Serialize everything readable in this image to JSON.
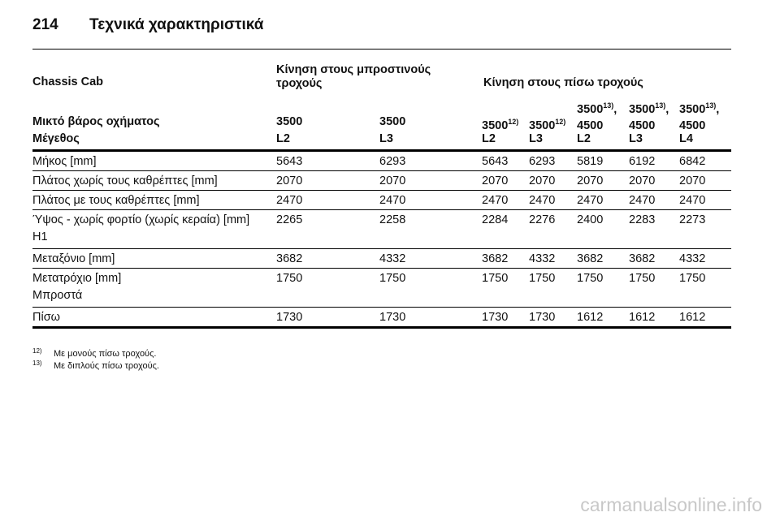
{
  "header": {
    "page_number": "214",
    "title": "Τεχνικά χαρακτηριστικά"
  },
  "table": {
    "group_header": {
      "label": "Chassis Cab",
      "front_drive": "Κίνηση στους μπροστινούς τροχούς",
      "rear_drive": "Κίνηση στους πίσω τροχούς"
    },
    "weight_row": {
      "label": "Μικτό βάρος οχήματος",
      "values": [
        "3500",
        "3500",
        "3500",
        "3500",
        "4500",
        "4500",
        "4500"
      ],
      "superscripts": [
        "",
        "",
        "12)",
        "12)",
        "",
        "",
        ""
      ],
      "upper_values": [
        "",
        "",
        "",
        "",
        "3500",
        "3500",
        "3500"
      ],
      "upper_superscripts": [
        "",
        "",
        "",
        "",
        "13)",
        "13)",
        "13)"
      ],
      "upper_suffix": [
        "",
        "",
        "",
        "",
        ",",
        ",",
        ","
      ]
    },
    "size_row": {
      "label": "Μέγεθος",
      "values": [
        "L2",
        "L3",
        "L2",
        "L3",
        "L2",
        "L3",
        "L4"
      ]
    },
    "rows": [
      {
        "label": "Μήκος [mm]",
        "label2": "",
        "values": [
          "5643",
          "6293",
          "5643",
          "6293",
          "5819",
          "6192",
          "6842"
        ]
      },
      {
        "label": "Πλάτος χωρίς τους καθρέπτες [mm]",
        "label2": "",
        "values": [
          "2070",
          "2070",
          "2070",
          "2070",
          "2070",
          "2070",
          "2070"
        ]
      },
      {
        "label": "Πλάτος με τους καθρέπτες [mm]",
        "label2": "",
        "values": [
          "2470",
          "2470",
          "2470",
          "2470",
          "2470",
          "2470",
          "2470"
        ]
      },
      {
        "label": "Ύψος - χωρίς φορτίο (χωρίς κεραία) [mm]",
        "label2": "H1",
        "values": [
          "2265",
          "2258",
          "2284",
          "2276",
          "2400",
          "2283",
          "2273"
        ]
      },
      {
        "label": "Μεταξόνιο [mm]",
        "label2": "",
        "values": [
          "3682",
          "4332",
          "3682",
          "4332",
          "3682",
          "3682",
          "4332"
        ]
      },
      {
        "label": "Μετατρόχιο [mm]",
        "label2": "Μπροστά",
        "values": [
          "1750",
          "1750",
          "1750",
          "1750",
          "1750",
          "1750",
          "1750"
        ]
      },
      {
        "label": "Πίσω",
        "label2": "",
        "values": [
          "1730",
          "1730",
          "1730",
          "1730",
          "1612",
          "1612",
          "1612"
        ]
      }
    ]
  },
  "footnotes": [
    {
      "mark": "12)",
      "text": "Με μονούς πίσω τροχούς."
    },
    {
      "mark": "13)",
      "text": "Με διπλούς πίσω τροχούς."
    }
  ],
  "watermark": "carmanualsonline.info"
}
